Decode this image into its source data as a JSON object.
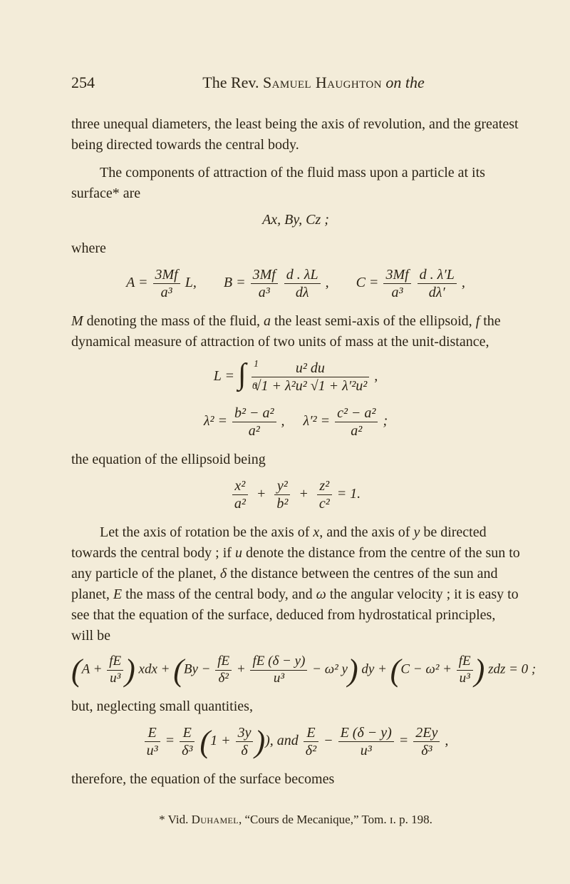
{
  "page": {
    "number": "254",
    "running_title_prefix": "The Rev. ",
    "running_title_name": "Samuel Haughton",
    "running_title_suffix": " on the"
  },
  "body": {
    "p1": "three unequal diameters, the least being the axis of revolution, and the greatest being directed towards the central body.",
    "p2": "The components of attraction of the fluid mass upon a particle at its surface* are",
    "eq_axbycz": "Ax,   By,   Cz ;",
    "where": "where",
    "eqA_lhs": "A = ",
    "eqA_num": "3Mf",
    "eqA_den": "a³",
    "eqA_tail": " L,",
    "eqB_lhs": "B = ",
    "eqB_num1": "3Mf",
    "eqB_den1": "a³",
    "eqB_num2": "d . λL",
    "eqB_den2": "dλ",
    "eqB_tail": " ,",
    "eqC_lhs": "C = ",
    "eqC_num1": "3Mf",
    "eqC_den1": "a³",
    "eqC_num2": "d . λ′L",
    "eqC_den2": "dλ′",
    "eqC_tail": " ,",
    "p3a": "M",
    "p3b": " denoting the mass of the fluid, ",
    "p3c": "a",
    "p3d": " the least semi-axis of the ellipsoid, ",
    "p3e": "f",
    "p3f": " the dynamical measure of attraction of two units of mass at the unit-distance,",
    "eqL_lhs": "L = ",
    "eqL_num": "u² du",
    "eqL_den": "√1 + λ²u²  √1 + λ′²u²",
    "eqL_comma": " ,",
    "eq_lambda2": "λ² = ",
    "eq_lambda2_num": "b² − a²",
    "eq_lambda2_den": "a²",
    "eq_lambdap2": "λ′² = ",
    "eq_lambdap2_num": "c² − a²",
    "eq_lambdap2_den": "a²",
    "eq_lambda_tail": " ;",
    "p4": "the equation of the ellipsoid being",
    "ell1_num": "x²",
    "ell1_den": "a²",
    "ell2_num": "y²",
    "ell2_den": "b²",
    "ell3_num": "z²",
    "ell3_den": "c²",
    "ell_tail": " = 1.",
    "p5a": "Let the axis of rotation be the axis of ",
    "p5b": "x",
    "p5c": ", and the axis of ",
    "p5d": "y",
    "p5e": " be directed towards the central body ;  if ",
    "p5f": "u",
    "p5g": " denote the distance from the centre of the sun to any particle of the planet, ",
    "p5h": "δ",
    "p5i": " the distance between the centres of the sun and planet, ",
    "p5j": "E",
    "p5k": " the mass of the central body, and ",
    "p5l": "ω",
    "p5m": " the angular velocity ;  it is easy to see that the equation of the surface, deduced from hydrostatical principles, will be",
    "bigeq_A": "A + ",
    "bigeq_A_num": "fE",
    "bigeq_A_den": "u³",
    "bigeq_xdx": " xdx + ",
    "bigeq_B": "By − ",
    "bigeq_B1_num": "fE",
    "bigeq_B1_den": "δ²",
    "bigeq_plus": " + ",
    "bigeq_B2_num": "fE (δ − y)",
    "bigeq_B2_den": "u³",
    "bigeq_w2y": " − ω² y",
    "bigeq_dy": " dy + ",
    "bigeq_C": "C − ω² + ",
    "bigeq_C_num": "fE",
    "bigeq_C_den": "u³",
    "bigeq_zdz": " zdz = 0 ;",
    "p6": "but, neglecting small quantities,",
    "small1_lhs": "",
    "small1_a_num": "E",
    "small1_a_den": "u³",
    "small1_eq": " = ",
    "small1_b_num": "E",
    "small1_b_den": "δ³",
    "small1_mid": " (1 + ",
    "small1_c_num": "3y",
    "small1_c_den": "δ",
    "small1_close": "),   and   ",
    "small2_a_num": "E",
    "small2_a_den": "δ²",
    "small2_minus": " − ",
    "small2_b_num": "E (δ − y)",
    "small2_b_den": "u³",
    "small2_eq": " = ",
    "small2_c_num": "2Ey",
    "small2_c_den": "δ³",
    "small2_tail": " ,",
    "p7": "therefore, the equation of the surface becomes",
    "footnote_star": "* Vid. ",
    "footnote_name": "Duhamel",
    "footnote_rest": ", “Cours de Mecanique,” Tom. ɪ. p. 198."
  }
}
